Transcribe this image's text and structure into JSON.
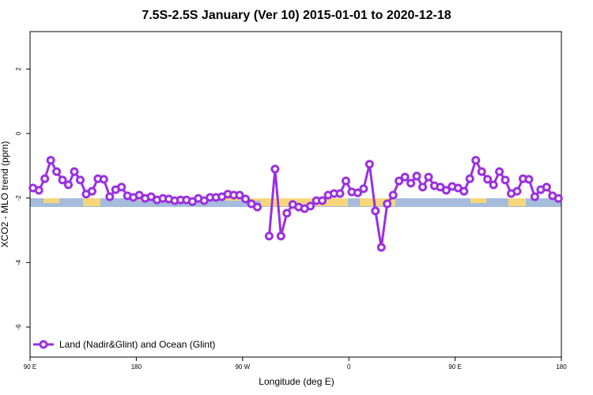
{
  "chart_data": {
    "type": "line",
    "title": "7.5S-2.5S January (Ver 10)   2015-01-01 to 2020-12-18",
    "x_label": "Longitude (deg E)",
    "y_label": "XCO2 - MLO trend (ppm)",
    "xlim": [
      90,
      540
    ],
    "ylim": [
      -6.93,
      3.16
    ],
    "xticks": [
      {
        "value": 90,
        "label": "90 E"
      },
      {
        "value": 180,
        "label": "180"
      },
      {
        "value": 270,
        "label": "90 W"
      },
      {
        "value": 360,
        "label": "0"
      },
      {
        "value": 450,
        "label": "90 E"
      },
      {
        "value": 540,
        "label": "180"
      }
    ],
    "yticks": [
      2,
      0,
      -2,
      -4,
      -6
    ],
    "legend": "bottom-left",
    "x": [
      92.5,
      97.5,
      102.5,
      107.5,
      112.5,
      117.5,
      122.5,
      127.5,
      132.5,
      137.5,
      142.5,
      147.5,
      152.5,
      157.5,
      162.5,
      167.5,
      172.5,
      177.5,
      182.5,
      187.5,
      192.5,
      197.5,
      202.5,
      207.5,
      212.5,
      217.5,
      222.5,
      227.5,
      232.5,
      237.5,
      242.5,
      247.5,
      252.5,
      257.5,
      262.5,
      267.5,
      272.5,
      277.5,
      282.5,
      287.5,
      292.5,
      297.5,
      302.5,
      307.5,
      312.5,
      317.5,
      322.5,
      327.5,
      332.5,
      337.5,
      342.5,
      347.5,
      352.5,
      357.5,
      362.5,
      367.5,
      372.5,
      377.5,
      382.5,
      387.5,
      392.5,
      397.5,
      402.5,
      407.5,
      412.5,
      417.5,
      422.5,
      427.5,
      432.5,
      437.5,
      442.5,
      447.5,
      452.5,
      457.5,
      462.5,
      467.5,
      472.5,
      477.5,
      482.5,
      487.5,
      492.5,
      497.5,
      502.5,
      507.5,
      512.5,
      517.5,
      522.5,
      527.5,
      532.5,
      537.5
    ],
    "series": [
      {
        "name": "Land (Nadir&Glint) and Ocean (Glint)",
        "color": "#9b30e0",
        "values": [
          -1.69,
          -1.76,
          -1.4,
          -0.83,
          -1.18,
          -1.44,
          -1.59,
          -1.18,
          -1.44,
          -1.88,
          -1.79,
          -1.4,
          -1.42,
          -1.96,
          -1.74,
          -1.66,
          -1.93,
          -1.98,
          -1.91,
          -2.01,
          -1.96,
          -2.06,
          -2.01,
          -2.03,
          -2.08,
          -2.06,
          -2.06,
          -2.11,
          -2.01,
          -2.08,
          -1.98,
          -1.98,
          -1.96,
          -1.88,
          -1.91,
          -1.91,
          -2.03,
          -2.18,
          -2.28,
          null,
          -3.18,
          -1.1,
          -3.18,
          -2.47,
          -2.2,
          -2.28,
          -2.33,
          -2.25,
          -2.08,
          -2.08,
          -1.91,
          -1.86,
          -1.86,
          -1.47,
          -1.81,
          -1.84,
          -1.71,
          -0.95,
          -2.4,
          -3.53,
          -2.18,
          -1.91,
          -1.47,
          -1.35,
          -1.54,
          -1.32,
          -1.66,
          -1.35,
          -1.62,
          -1.66,
          -1.76,
          -1.64,
          -1.69,
          -1.79,
          -1.4,
          -0.83,
          -1.18,
          -1.42,
          -1.59,
          -1.18,
          -1.44,
          -1.86,
          -1.79,
          -1.4,
          -1.42,
          -1.96,
          -1.74,
          -1.66,
          -1.93,
          -2.01
        ]
      }
    ]
  }
}
